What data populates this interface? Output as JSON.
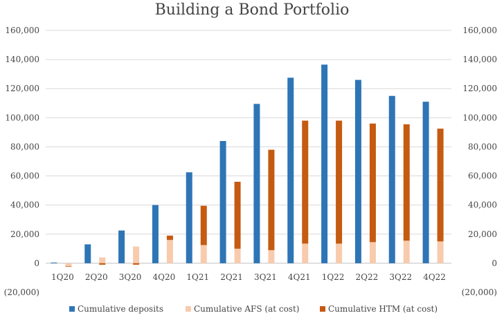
{
  "chart_data": {
    "type": "bar",
    "title": "Building a Bond Portfolio",
    "categories": [
      "1Q20",
      "2Q20",
      "3Q20",
      "4Q20",
      "1Q21",
      "2Q21",
      "3Q21",
      "4Q21",
      "1Q22",
      "2Q22",
      "3Q22",
      "4Q22"
    ],
    "ylim": [
      -20000,
      160000
    ],
    "yticks": [
      -20000,
      0,
      20000,
      40000,
      60000,
      80000,
      100000,
      120000,
      140000,
      160000
    ],
    "ytick_labels": [
      "(20,000)",
      "0",
      "20,000",
      "40,000",
      "60,000",
      "80,000",
      "100,000",
      "120,000",
      "140,000",
      "160,000"
    ],
    "secondary_axis": true,
    "grid": true,
    "legend_position": "bottom",
    "series": [
      {
        "name": "Cumulative deposits",
        "color": "#2e75b6",
        "values": [
          500,
          13000,
          22500,
          40000,
          62500,
          84000,
          109500,
          127500,
          136500,
          126000,
          115000,
          111000
        ]
      },
      {
        "name": "Cumulative AFS (at cost)",
        "color": "#f8cbad",
        "values": [
          -2000,
          4000,
          11500,
          16000,
          12500,
          10000,
          9000,
          13500,
          13500,
          14500,
          15500,
          15000
        ]
      },
      {
        "name": "Cumulative HTM (at cost)",
        "color": "#c55a11",
        "values": [
          -200,
          -1000,
          -1000,
          3000,
          27000,
          46000,
          69000,
          84500,
          84500,
          81500,
          80000,
          77500
        ]
      }
    ],
    "stacking": "AFS and HTM are stacked in the second bar of each category"
  }
}
